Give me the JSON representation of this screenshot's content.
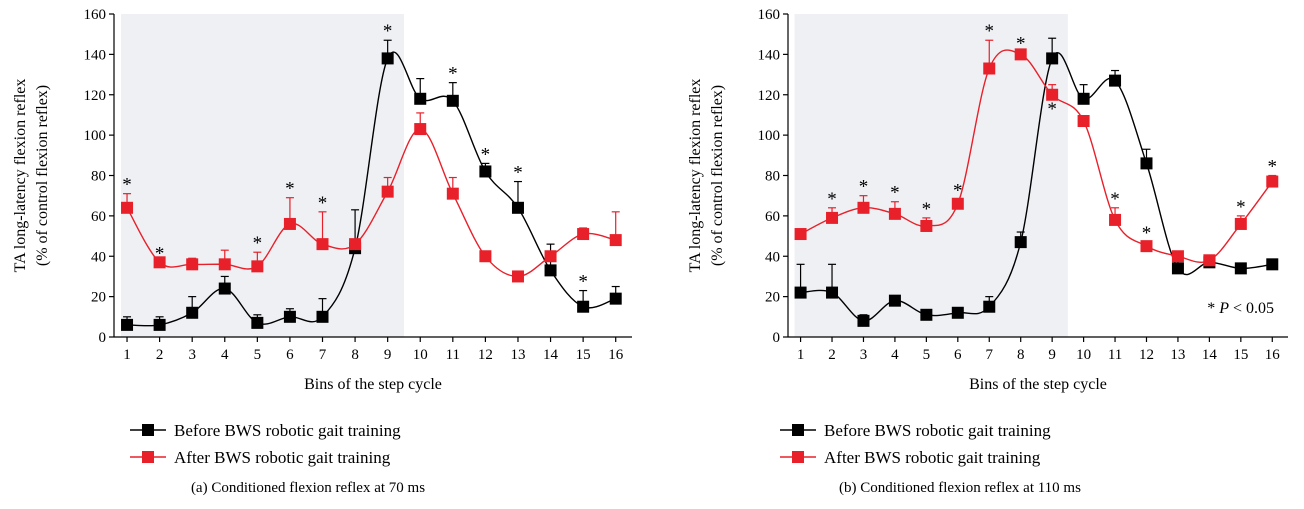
{
  "colors": {
    "before": "#000000",
    "after": "#e8202a",
    "shade": "#eef0f4"
  },
  "legend": {
    "before": "Before BWS robotic gait training",
    "after": "After BWS robotic gait training"
  },
  "chart_data": [
    {
      "type": "line",
      "panel_caption": "(a)  Conditioned flexion reflex at 70 ms",
      "xlabel": "Bins of the step cycle",
      "ylabel": [
        "TA long-latency flexion reflex",
        "(% of control flexion reflex)"
      ],
      "ylim": [
        0,
        160
      ],
      "yticks": [
        0,
        20,
        40,
        60,
        80,
        100,
        120,
        140,
        160
      ],
      "x": [
        1,
        2,
        3,
        4,
        5,
        6,
        7,
        8,
        9,
        10,
        11,
        12,
        13,
        14,
        15,
        16
      ],
      "shaded_bins": [
        1,
        9.5
      ],
      "series": [
        {
          "name": "Before BWS robotic gait training",
          "key": "before",
          "values": [
            6,
            6,
            12,
            24,
            7,
            10,
            10,
            44,
            138,
            118,
            117,
            82,
            64,
            33,
            15,
            19
          ],
          "errors": [
            4,
            4,
            8,
            6,
            4,
            4,
            9,
            19,
            9,
            10,
            9,
            4,
            13,
            13,
            8,
            6
          ]
        },
        {
          "name": "After BWS robotic gait training",
          "key": "after",
          "values": [
            64,
            37,
            36,
            36,
            35,
            56,
            46,
            46,
            72,
            103,
            71,
            40,
            30,
            40,
            51,
            48
          ],
          "errors": [
            7,
            0,
            3,
            7,
            7,
            13,
            16,
            0,
            7,
            8,
            8,
            0,
            0,
            0,
            3,
            14
          ]
        }
      ],
      "stars": [
        {
          "x": 1,
          "y": 71,
          "pos": "above"
        },
        {
          "x": 2,
          "y": 37,
          "pos": "above"
        },
        {
          "x": 5,
          "y": 42,
          "pos": "above"
        },
        {
          "x": 6,
          "y": 69,
          "pos": "above"
        },
        {
          "x": 7,
          "y": 62,
          "pos": "above"
        },
        {
          "x": 9,
          "y": 147,
          "pos": "above"
        },
        {
          "x": 11,
          "y": 126,
          "pos": "above"
        },
        {
          "x": 12,
          "y": 86,
          "pos": "above"
        },
        {
          "x": 13,
          "y": 77,
          "pos": "above"
        },
        {
          "x": 15,
          "y": 23,
          "pos": "above"
        }
      ]
    },
    {
      "type": "line",
      "panel_caption": "(b)  Conditioned flexion reflex at 110 ms",
      "xlabel": "Bins of the step cycle",
      "ylabel": [
        "TA long-latency flexion reflex",
        "(% of control flexion reflex)"
      ],
      "ylim": [
        0,
        160
      ],
      "yticks": [
        0,
        20,
        40,
        60,
        80,
        100,
        120,
        140,
        160
      ],
      "x": [
        1,
        2,
        3,
        4,
        5,
        6,
        7,
        8,
        9,
        10,
        11,
        12,
        13,
        14,
        15,
        16
      ],
      "shaded_bins": [
        1,
        9.5
      ],
      "annotation": "* P < 0.05",
      "series": [
        {
          "name": "Before BWS robotic gait training",
          "key": "before",
          "values": [
            22,
            22,
            8,
            18,
            11,
            12,
            15,
            47,
            138,
            118,
            127,
            86,
            34,
            37,
            34,
            36
          ],
          "errors": [
            14,
            14,
            3,
            2,
            2,
            2,
            5,
            5,
            10,
            7,
            5,
            7,
            8,
            2,
            2,
            2
          ]
        },
        {
          "name": "After BWS robotic gait training",
          "key": "after",
          "values": [
            51,
            59,
            64,
            61,
            55,
            66,
            133,
            140,
            120,
            107,
            58,
            45,
            40,
            38,
            56,
            77
          ],
          "errors": [
            0,
            5,
            6,
            6,
            4,
            2,
            14,
            1,
            5,
            0,
            6,
            2,
            0,
            1,
            4,
            3
          ]
        }
      ],
      "stars": [
        {
          "x": 2,
          "y": 64,
          "pos": "above"
        },
        {
          "x": 3,
          "y": 70,
          "pos": "above"
        },
        {
          "x": 4,
          "y": 67,
          "pos": "above"
        },
        {
          "x": 5,
          "y": 59,
          "pos": "above"
        },
        {
          "x": 6,
          "y": 68,
          "pos": "above"
        },
        {
          "x": 7,
          "y": 147,
          "pos": "above"
        },
        {
          "x": 8,
          "y": 141,
          "pos": "above"
        },
        {
          "x": 9,
          "y": 115,
          "pos": "below"
        },
        {
          "x": 11,
          "y": 64,
          "pos": "above"
        },
        {
          "x": 12,
          "y": 47,
          "pos": "above"
        },
        {
          "x": 15,
          "y": 60,
          "pos": "above"
        },
        {
          "x": 16,
          "y": 80,
          "pos": "above"
        }
      ]
    }
  ]
}
